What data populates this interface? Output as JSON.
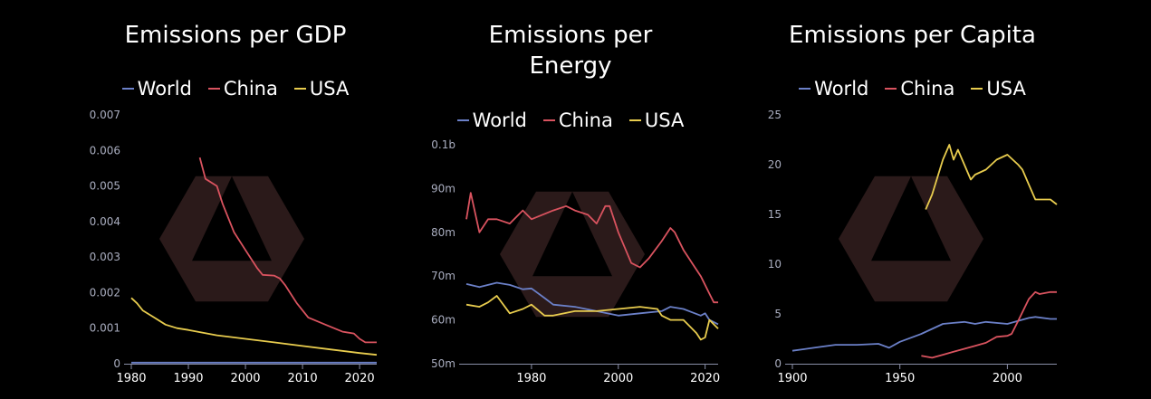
{
  "colors": {
    "background": "#000000",
    "World": "#6b80c8",
    "China": "#d9535f",
    "USA": "#e8cc4e",
    "axis": "#8a8fa8",
    "tick": "#a9adbf",
    "watermark": "#2b1a1a"
  },
  "chart_data": [
    {
      "type": "line",
      "title": "Emissions per GDP",
      "legend": [
        "World",
        "China",
        "USA"
      ],
      "xlim": [
        1980,
        2023
      ],
      "ylim": [
        0,
        0.007
      ],
      "xticks": [
        1980,
        1990,
        2000,
        2010,
        2020
      ],
      "xtick_labels": [
        "1980",
        "1990",
        "2000",
        "2010",
        "2020"
      ],
      "yticks": [
        0,
        0.001,
        0.002,
        0.003,
        0.004,
        0.005,
        0.006,
        0.007
      ],
      "ytick_labels": [
        "0",
        "0.001",
        "0.002",
        "0.003",
        "0.004",
        "0.005",
        "0.006",
        "0.007"
      ],
      "series": [
        {
          "name": "World",
          "x": [
            1980,
            2000,
            2023
          ],
          "values": [
            3e-05,
            3e-05,
            3e-05
          ]
        },
        {
          "name": "China",
          "x": [
            1992,
            1993,
            1995,
            1996,
            1998,
            2000,
            2002,
            2003,
            2005,
            2006,
            2007,
            2009,
            2011,
            2014,
            2017,
            2019,
            2020,
            2021,
            2023
          ],
          "values": [
            0.0058,
            0.0052,
            0.005,
            0.0045,
            0.0037,
            0.0032,
            0.0027,
            0.0025,
            0.00248,
            0.0024,
            0.0022,
            0.0017,
            0.0013,
            0.0011,
            0.0009,
            0.00085,
            0.0007,
            0.0006,
            0.0006
          ]
        },
        {
          "name": "USA",
          "x": [
            1980,
            1981,
            1982,
            1984,
            1986,
            1988,
            1990,
            1995,
            2000,
            2005,
            2010,
            2015,
            2020,
            2023
          ],
          "values": [
            0.00185,
            0.0017,
            0.0015,
            0.0013,
            0.0011,
            0.001,
            0.00095,
            0.0008,
            0.0007,
            0.0006,
            0.0005,
            0.0004,
            0.0003,
            0.00025
          ]
        }
      ]
    },
    {
      "type": "line",
      "title": "Emissions per Energy",
      "legend": [
        "World",
        "China",
        "USA"
      ],
      "xlim": [
        1965,
        2023
      ],
      "ylim": [
        50,
        100
      ],
      "xticks": [
        1980,
        2000,
        2020
      ],
      "xtick_labels": [
        "1980",
        "2000",
        "2020"
      ],
      "yticks": [
        50,
        60,
        70,
        80,
        90,
        100
      ],
      "ytick_labels": [
        "50m",
        "60m",
        "70m",
        "80m",
        "90m",
        "0.1b"
      ],
      "series": [
        {
          "name": "World",
          "x": [
            1965,
            1968,
            1972,
            1975,
            1978,
            1980,
            1983,
            1985,
            1990,
            1995,
            2000,
            2005,
            2010,
            2012,
            2015,
            2019,
            2020,
            2021,
            2023
          ],
          "values": [
            68.2,
            67.5,
            68.5,
            68,
            67,
            67.2,
            65,
            63.5,
            63,
            62,
            61,
            61.5,
            62,
            63,
            62.5,
            61,
            61.5,
            60,
            59
          ]
        },
        {
          "name": "China",
          "x": [
            1965,
            1966,
            1968,
            1970,
            1972,
            1975,
            1978,
            1980,
            1985,
            1988,
            1990,
            1993,
            1995,
            1997,
            1998,
            2000,
            2003,
            2005,
            2007,
            2010,
            2012,
            2013,
            2015,
            2017,
            2019,
            2021,
            2022,
            2023
          ],
          "values": [
            83,
            89,
            80,
            83,
            83,
            82,
            85,
            83,
            85,
            86,
            85,
            84,
            82,
            86,
            86,
            80,
            73,
            72,
            74,
            78,
            81,
            80,
            76,
            73,
            70,
            66,
            64,
            64
          ]
        },
        {
          "name": "USA",
          "x": [
            1965,
            1968,
            1970,
            1972,
            1975,
            1978,
            1980,
            1983,
            1985,
            1990,
            1995,
            2000,
            2005,
            2009,
            2010,
            2012,
            2015,
            2018,
            2019,
            2020,
            2021,
            2023
          ],
          "values": [
            63.5,
            63,
            64,
            65.5,
            61.5,
            62.5,
            63.5,
            61,
            61,
            62,
            62,
            62.5,
            63,
            62.5,
            61,
            60,
            60,
            57,
            55.5,
            56,
            60,
            58
          ]
        }
      ]
    },
    {
      "type": "line",
      "title": "Emissions per Capita",
      "legend": [
        "World",
        "China",
        "USA"
      ],
      "xlim": [
        1900,
        2023
      ],
      "ylim": [
        0,
        25
      ],
      "xticks": [
        1900,
        1950,
        2000
      ],
      "xtick_labels": [
        "1900",
        "1950",
        "2000"
      ],
      "yticks": [
        0,
        5,
        10,
        15,
        20,
        25
      ],
      "ytick_labels": [
        "0",
        "5",
        "10",
        "15",
        "20",
        "25"
      ],
      "series": [
        {
          "name": "World",
          "x": [
            1900,
            1910,
            1920,
            1930,
            1940,
            1945,
            1950,
            1960,
            1970,
            1975,
            1980,
            1985,
            1990,
            2000,
            2010,
            2013,
            2020,
            2023
          ],
          "values": [
            1.3,
            1.6,
            1.9,
            1.9,
            2.0,
            1.6,
            2.2,
            3.0,
            4.0,
            4.1,
            4.2,
            4.0,
            4.2,
            4.0,
            4.6,
            4.7,
            4.5,
            4.5
          ]
        },
        {
          "name": "China",
          "x": [
            1960,
            1965,
            1970,
            1975,
            1980,
            1985,
            1990,
            1995,
            2000,
            2002,
            2005,
            2010,
            2013,
            2015,
            2020,
            2023
          ],
          "values": [
            0.8,
            0.6,
            0.9,
            1.2,
            1.5,
            1.8,
            2.1,
            2.7,
            2.8,
            3.0,
            4.3,
            6.5,
            7.2,
            7.0,
            7.2,
            7.2
          ]
        },
        {
          "name": "USA",
          "x": [
            1962,
            1965,
            1970,
            1973,
            1975,
            1977,
            1980,
            1983,
            1985,
            1990,
            1995,
            2000,
            2005,
            2007,
            2010,
            2013,
            2015,
            2020,
            2023
          ],
          "values": [
            15.5,
            17,
            20.5,
            22,
            20.5,
            21.5,
            20,
            18.5,
            19,
            19.5,
            20.5,
            21,
            20,
            19.5,
            18,
            16.5,
            16.5,
            16.5,
            16
          ]
        }
      ]
    }
  ]
}
